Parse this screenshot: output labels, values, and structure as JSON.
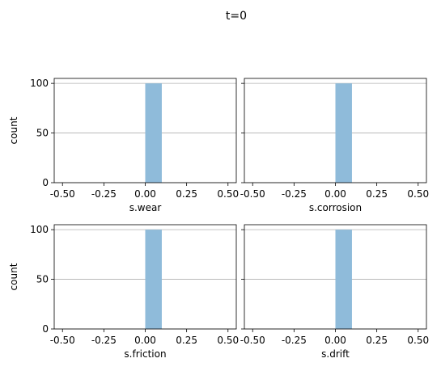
{
  "figure": {
    "title": "t=0"
  },
  "chart_data": [
    {
      "type": "bar",
      "xlabel": "s.wear",
      "ylabel": "count",
      "xlim": [
        -0.55,
        0.55
      ],
      "ylim": [
        0,
        105
      ],
      "xticks": [
        "-0.50",
        "-0.25",
        "0.00",
        "0.25",
        "0.50"
      ],
      "yticks": [
        "0",
        "50",
        "100"
      ],
      "grid": "y-only",
      "bins": [
        {
          "x0": 0.0,
          "x1": 0.1,
          "count": 100
        }
      ]
    },
    {
      "type": "bar",
      "xlabel": "s.corrosion",
      "ylabel": "",
      "xlim": [
        -0.55,
        0.55
      ],
      "ylim": [
        0,
        105
      ],
      "xticks": [
        "-0.50",
        "-0.25",
        "0.00",
        "0.25",
        "0.50"
      ],
      "yticks": [],
      "grid": "y-only",
      "bins": [
        {
          "x0": 0.0,
          "x1": 0.1,
          "count": 100
        }
      ]
    },
    {
      "type": "bar",
      "xlabel": "s.friction",
      "ylabel": "count",
      "xlim": [
        -0.55,
        0.55
      ],
      "ylim": [
        0,
        105
      ],
      "xticks": [
        "-0.50",
        "-0.25",
        "0.00",
        "0.25",
        "0.50"
      ],
      "yticks": [
        "0",
        "50",
        "100"
      ],
      "grid": "y-only",
      "bins": [
        {
          "x0": 0.0,
          "x1": 0.1,
          "count": 100
        }
      ]
    },
    {
      "type": "bar",
      "xlabel": "s.drift",
      "ylabel": "",
      "xlim": [
        -0.55,
        0.55
      ],
      "ylim": [
        0,
        105
      ],
      "xticks": [
        "-0.50",
        "-0.25",
        "0.00",
        "0.25",
        "0.50"
      ],
      "yticks": [],
      "grid": "y-only",
      "bins": [
        {
          "x0": 0.0,
          "x1": 0.1,
          "count": 100
        }
      ]
    }
  ],
  "colors": {
    "bar": "#8fbbda",
    "grid": "#b0b0b0",
    "axis": "#000000"
  }
}
